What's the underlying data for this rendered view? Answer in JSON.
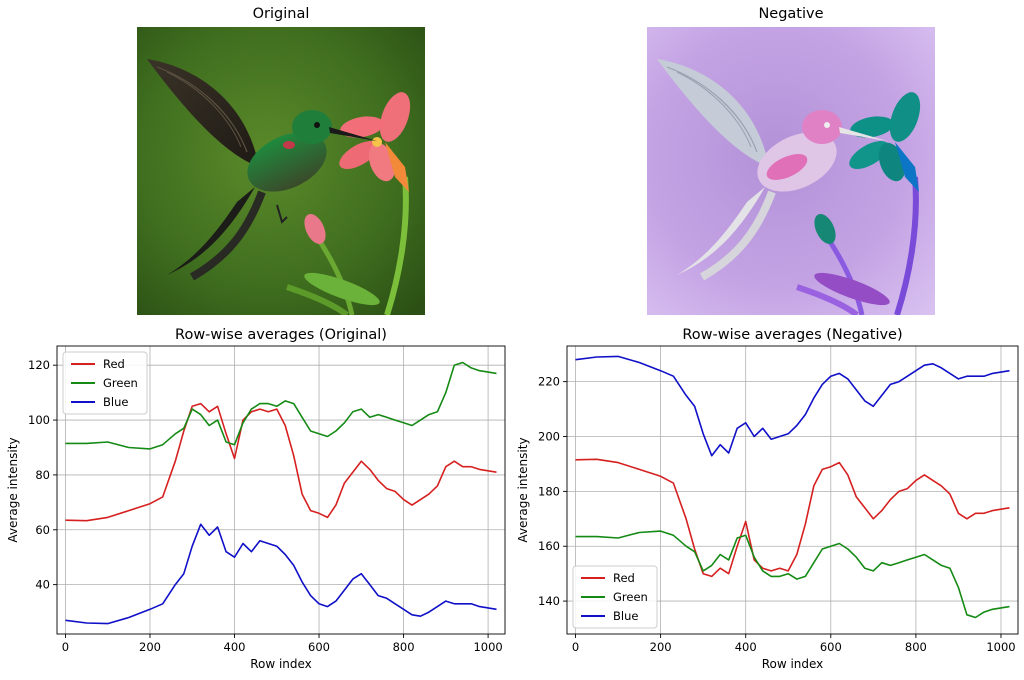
{
  "images": {
    "original_title": "Original",
    "negative_title": "Negative"
  },
  "colors": {
    "red": "#d62020",
    "green": "#158a15",
    "blue": "#1010c8",
    "grid": "#b0b0b0"
  },
  "chart_data": [
    {
      "type": "line",
      "title": "Row-wise averages (Original)",
      "xlabel": "Row index",
      "ylabel": "Average intensity",
      "xlim": [
        -20,
        1040
      ],
      "ylim": [
        22,
        127
      ],
      "xticks": [
        0,
        200,
        400,
        600,
        800,
        1000
      ],
      "yticks": [
        40,
        60,
        80,
        100,
        120
      ],
      "grid": true,
      "legend": "top-left",
      "x": [
        0,
        50,
        100,
        150,
        200,
        230,
        260,
        280,
        300,
        320,
        340,
        360,
        380,
        400,
        420,
        440,
        460,
        480,
        500,
        520,
        540,
        560,
        580,
        600,
        620,
        640,
        660,
        680,
        700,
        720,
        740,
        760,
        780,
        800,
        820,
        840,
        860,
        880,
        900,
        920,
        940,
        960,
        980,
        1000,
        1020
      ],
      "series": [
        {
          "name": "Red",
          "color": "red",
          "values": [
            63.5,
            63.3,
            64.5,
            67.0,
            69.5,
            72,
            85,
            96,
            105,
            106,
            103,
            105,
            95,
            86,
            100,
            103,
            104,
            103,
            104,
            98,
            87,
            73,
            67,
            66,
            64.5,
            69,
            77,
            81,
            85,
            82,
            78,
            75,
            74,
            71,
            69,
            71,
            73,
            76,
            83,
            85,
            83,
            83,
            82,
            81.5,
            81
          ]
        },
        {
          "name": "Green",
          "color": "green",
          "values": [
            91.5,
            91.5,
            92.0,
            90.0,
            89.5,
            91,
            95,
            97,
            104,
            102,
            98,
            100,
            92,
            91,
            99,
            104,
            106,
            106,
            105,
            107,
            106,
            101,
            96,
            95,
            94,
            96,
            99,
            103,
            104,
            101,
            102,
            101,
            100,
            99,
            98,
            100,
            102,
            103,
            110,
            120,
            121,
            119,
            118,
            117.5,
            117
          ]
        },
        {
          "name": "Blue",
          "color": "blue",
          "values": [
            27.0,
            26.0,
            25.8,
            28.0,
            31.0,
            33,
            40,
            44,
            54,
            62,
            58,
            61,
            52,
            50,
            55,
            52,
            56,
            55,
            54,
            51,
            47,
            41,
            36,
            33,
            32,
            34,
            38,
            42,
            44,
            40,
            36,
            35,
            33,
            31,
            29,
            28.5,
            30,
            32,
            34,
            33,
            33,
            33,
            32,
            31.5,
            31
          ]
        }
      ]
    },
    {
      "type": "line",
      "title": "Row-wise averages (Negative)",
      "xlabel": "Row index",
      "ylabel": "Average intensity",
      "xlim": [
        -20,
        1040
      ],
      "ylim": [
        128,
        233
      ],
      "xticks": [
        0,
        200,
        400,
        600,
        800,
        1000
      ],
      "yticks": [
        140,
        160,
        180,
        200,
        220
      ],
      "grid": true,
      "legend": "bottom-left",
      "x": [
        0,
        50,
        100,
        150,
        200,
        230,
        260,
        280,
        300,
        320,
        340,
        360,
        380,
        400,
        420,
        440,
        460,
        480,
        500,
        520,
        540,
        560,
        580,
        600,
        620,
        640,
        660,
        680,
        700,
        720,
        740,
        760,
        780,
        800,
        820,
        840,
        860,
        880,
        900,
        920,
        940,
        960,
        980,
        1000,
        1020
      ],
      "series": [
        {
          "name": "Red",
          "color": "red",
          "values": [
            191.5,
            191.7,
            190.5,
            188.0,
            185.5,
            183,
            170,
            159,
            150,
            149,
            152,
            150,
            160,
            169,
            155,
            152,
            151,
            152,
            151,
            157,
            168,
            182,
            188,
            189,
            190.5,
            186,
            178,
            174,
            170,
            173,
            177,
            180,
            181,
            184,
            186,
            184,
            182,
            179,
            172,
            170,
            172,
            172,
            173,
            173.5,
            174
          ]
        },
        {
          "name": "Green",
          "color": "green",
          "values": [
            163.5,
            163.5,
            163.0,
            165.0,
            165.5,
            164,
            160,
            158,
            151,
            153,
            157,
            155,
            163,
            164,
            156,
            151,
            149,
            149,
            150,
            148,
            149,
            154,
            159,
            160,
            161,
            159,
            156,
            152,
            151,
            154,
            153,
            154,
            155,
            156,
            157,
            155,
            153,
            152,
            145,
            135,
            134,
            136,
            137,
            137.5,
            138
          ]
        },
        {
          "name": "Blue",
          "color": "blue",
          "values": [
            228.0,
            229.0,
            229.2,
            227.0,
            224.0,
            222,
            215,
            211,
            201,
            193,
            197,
            194,
            203,
            205,
            200,
            203,
            199,
            200,
            201,
            204,
            208,
            214,
            219,
            222,
            223,
            221,
            217,
            213,
            211,
            215,
            219,
            220,
            222,
            224,
            226,
            226.5,
            225,
            223,
            221,
            222,
            222,
            222,
            223,
            223.5,
            224
          ]
        }
      ]
    }
  ]
}
